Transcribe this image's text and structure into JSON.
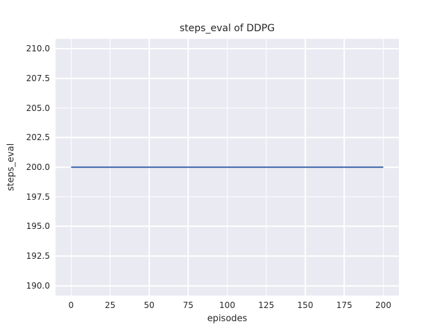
{
  "chart_data": {
    "type": "line",
    "title": "steps_eval of DDPG",
    "xlabel": "episodes",
    "ylabel": "steps_eval",
    "x_ticks": [
      0,
      25,
      50,
      75,
      100,
      125,
      150,
      175,
      200
    ],
    "x_tick_labels": [
      "0",
      "25",
      "50",
      "75",
      "100",
      "125",
      "150",
      "175",
      "200"
    ],
    "y_ticks": [
      190.0,
      192.5,
      195.0,
      197.5,
      200.0,
      202.5,
      205.0,
      207.5,
      210.0
    ],
    "y_tick_labels": [
      "190.0",
      "192.5",
      "195.0",
      "197.5",
      "200.0",
      "202.5",
      "205.0",
      "207.5",
      "210.0"
    ],
    "xlim": [
      -10,
      210
    ],
    "ylim": [
      189.17,
      210.83
    ],
    "grid": true,
    "legend_position": "none",
    "series": [
      {
        "name": "DDPG steps_eval",
        "x": [
          0,
          200
        ],
        "y": [
          200,
          200
        ],
        "color": "#4C72B0"
      }
    ],
    "colors": {
      "figure_background": "#ffffff",
      "axes_background": "#EAEAF2",
      "grid": "#ffffff",
      "text": "#262626"
    }
  }
}
